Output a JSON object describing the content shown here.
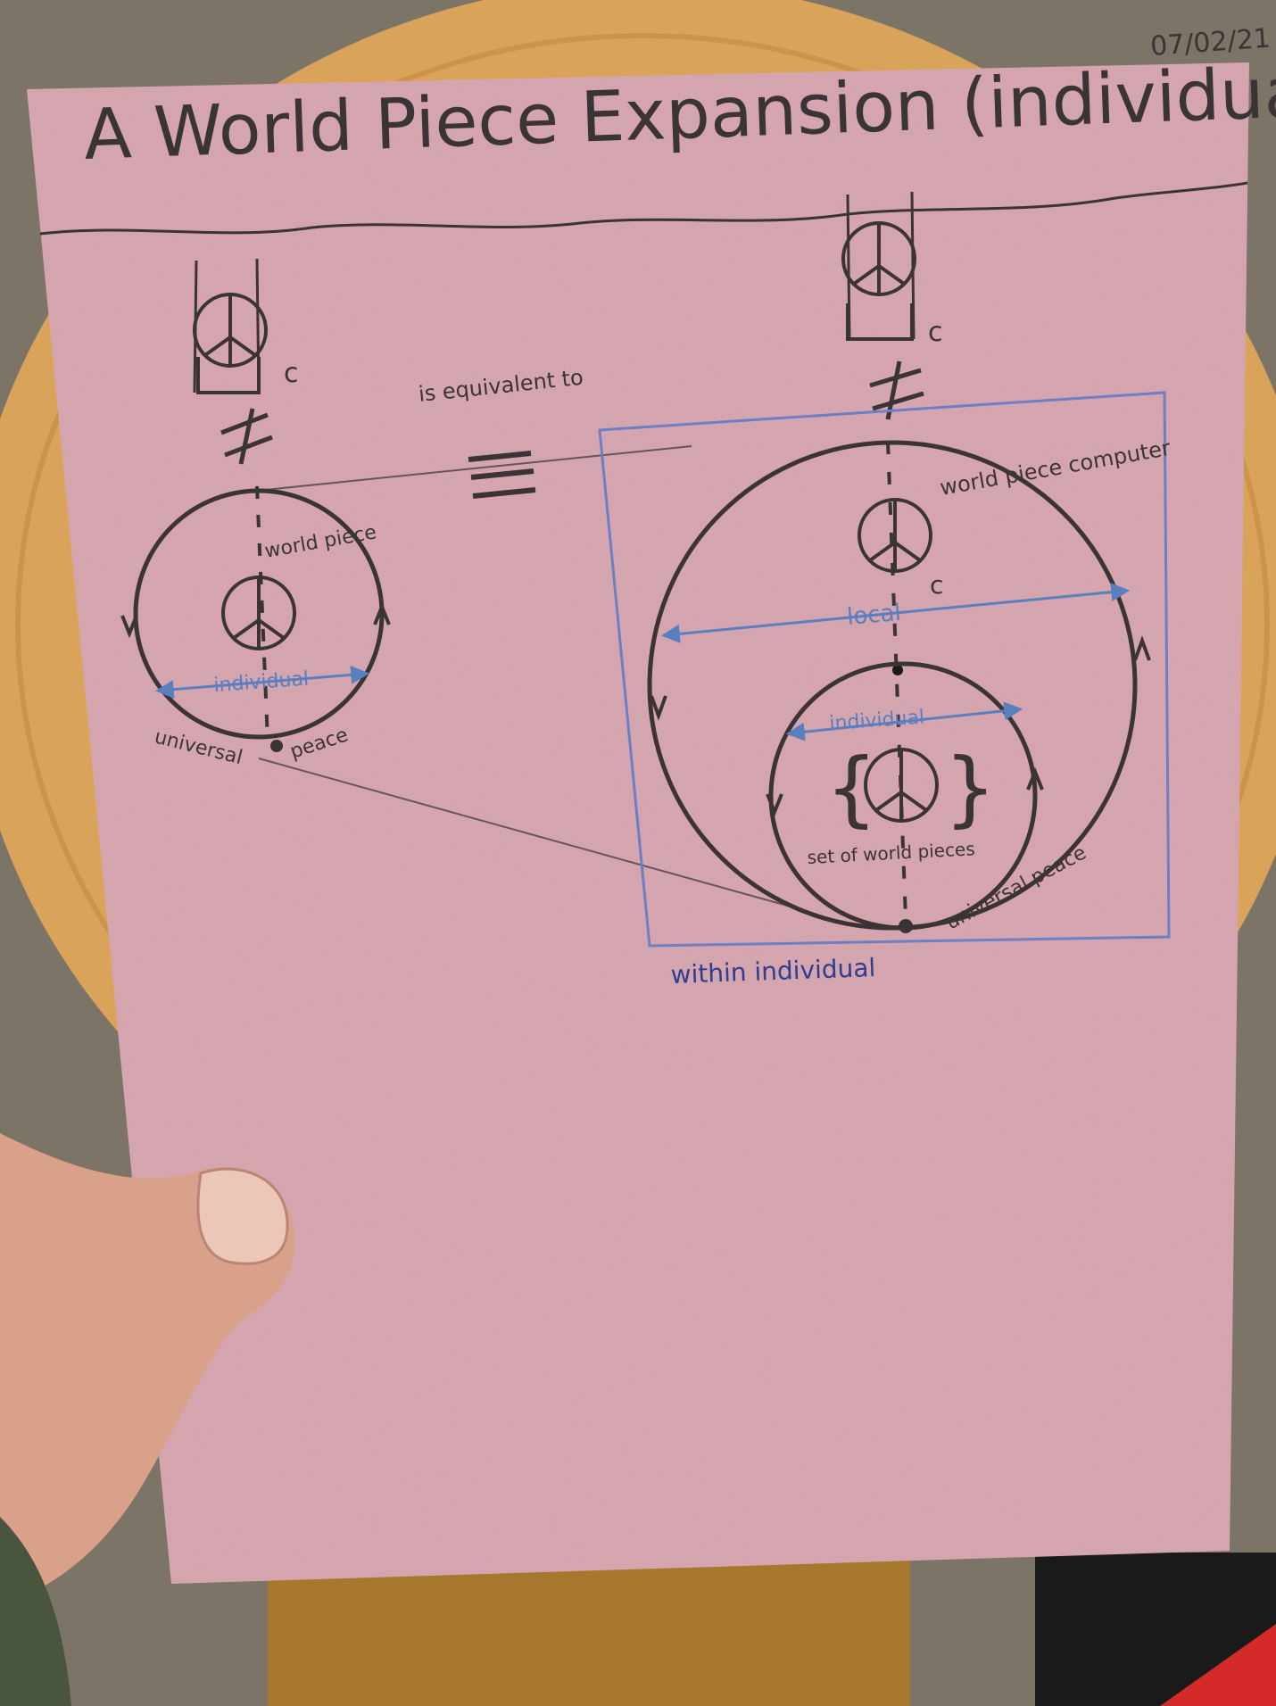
{
  "header": {
    "title": "A World Piece Expansion (individual)",
    "date": "07/02/21"
  },
  "left_diagram": {
    "c_label": "c",
    "inner_label": "world piece",
    "diameter_label": "individual",
    "bottom_left_label": "universal",
    "bottom_right_label": "peace"
  },
  "middle": {
    "equivalence_text": "is equivalent to"
  },
  "right_diagram": {
    "c_label_top": "c",
    "upper_label": "world piece computer",
    "c_label_inner": "c",
    "outer_diameter_label": "local",
    "inner_diameter_label": "individual",
    "set_label": "set of world pieces",
    "bottom_label": "universal peace",
    "frame_caption": "within individual"
  },
  "colors": {
    "paper": "#d7a3ad",
    "pencil": "#3b3436",
    "blue_pencil": "#5a7fbf",
    "navy_ink": "#2e3f8f",
    "table_wood": "#d9a45a"
  }
}
